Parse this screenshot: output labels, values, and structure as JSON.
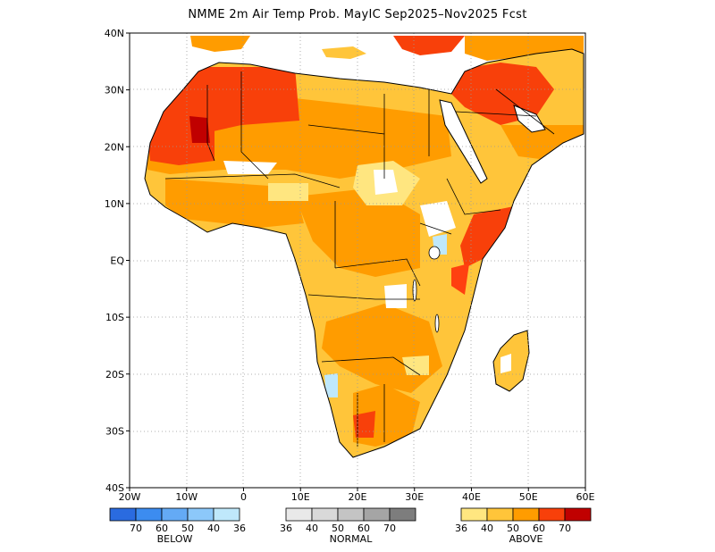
{
  "title": "NMME 2m Air Temp Prob. MayIC  Sep2025–Nov2025 Fcst",
  "lat_ticks": [
    "40N",
    "30N",
    "20N",
    "10N",
    "EQ",
    "10S",
    "20S",
    "30S",
    "40S"
  ],
  "lon_ticks": [
    "20W",
    "10W",
    "0",
    "10E",
    "20E",
    "30E",
    "40E",
    "50E",
    "60E"
  ],
  "extent": {
    "lon": [
      -20,
      60
    ],
    "lat": [
      -40,
      40
    ]
  },
  "legend": {
    "below": {
      "title": "BELOW",
      "labels": [
        "70",
        "60",
        "50",
        "40",
        "36"
      ],
      "colors": [
        "#2a6be0",
        "#3c8cf0",
        "#64aaf5",
        "#8cc8fa",
        "#bfe8fb"
      ]
    },
    "normal": {
      "title": "NORMAL",
      "labels": [
        "36",
        "40",
        "50",
        "60",
        "70"
      ],
      "colors": [
        "#e9e9e9",
        "#d9d9d9",
        "#c4c4c4",
        "#a5a5a5",
        "#7d7d7d"
      ]
    },
    "above": {
      "title": "ABOVE",
      "labels": [
        "36",
        "40",
        "50",
        "60",
        "70"
      ],
      "colors": [
        "#ffe680",
        "#ffc53a",
        "#ff9c00",
        "#f8400a",
        "#c00000"
      ]
    }
  }
}
